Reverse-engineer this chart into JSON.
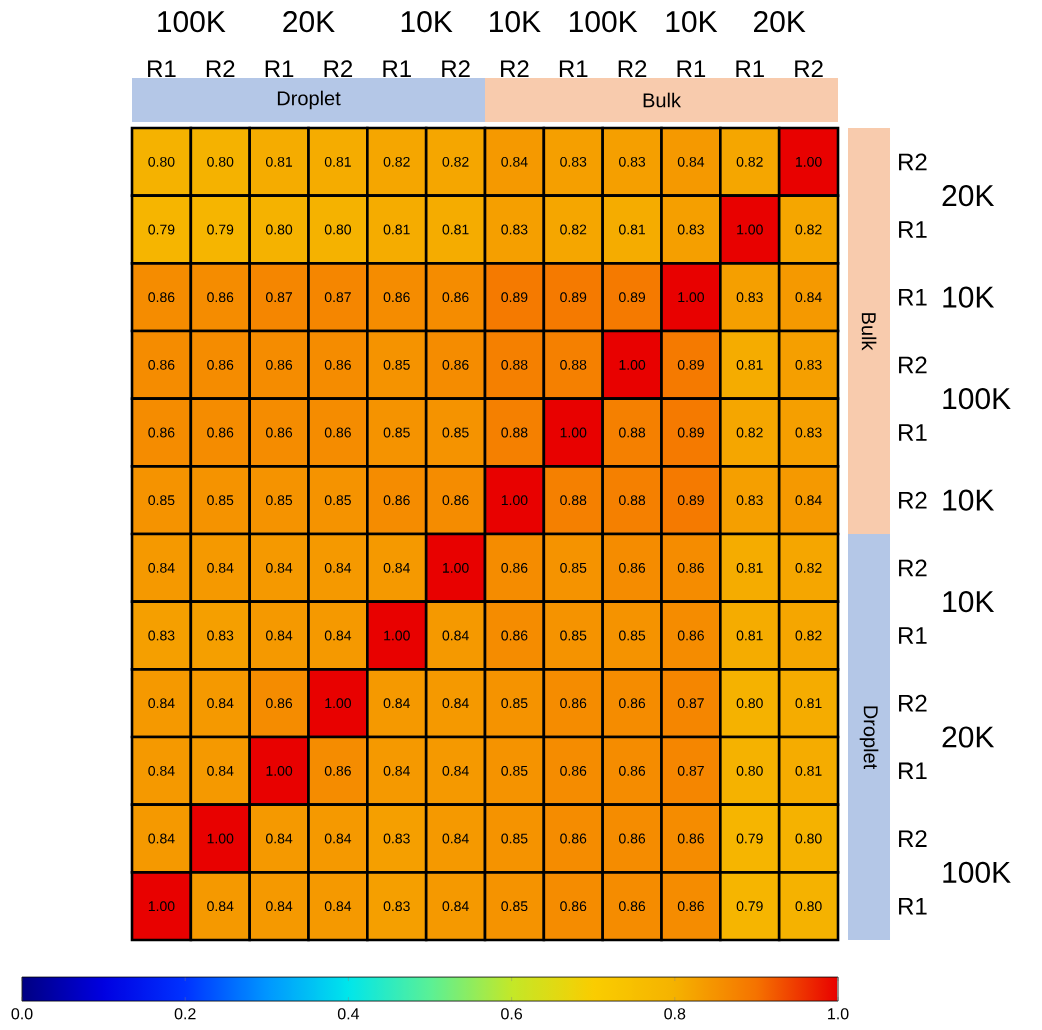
{
  "chart_data": {
    "type": "heatmap",
    "categories": [
      "R1",
      "R2",
      "R1",
      "R2",
      "R1",
      "R2",
      "R2",
      "R1",
      "R2",
      "R1",
      "R1",
      "R2"
    ],
    "y_categories": [
      "R2",
      "R1",
      "R1",
      "R2",
      "R1",
      "R2",
      "R2",
      "R1",
      "R2",
      "R1",
      "R2",
      "R1"
    ],
    "cells": [
      [
        0.8,
        0.8,
        0.81,
        0.81,
        0.82,
        0.82,
        0.84,
        0.83,
        0.83,
        0.84,
        0.82,
        1.0
      ],
      [
        0.79,
        0.79,
        0.8,
        0.8,
        0.81,
        0.81,
        0.83,
        0.82,
        0.81,
        0.83,
        1.0,
        0.82
      ],
      [
        0.86,
        0.86,
        0.87,
        0.87,
        0.86,
        0.86,
        0.89,
        0.89,
        0.89,
        1.0,
        0.83,
        0.84
      ],
      [
        0.86,
        0.86,
        0.86,
        0.86,
        0.85,
        0.86,
        0.88,
        0.88,
        1.0,
        0.89,
        0.81,
        0.83
      ],
      [
        0.86,
        0.86,
        0.86,
        0.86,
        0.85,
        0.85,
        0.88,
        1.0,
        0.88,
        0.89,
        0.82,
        0.83
      ],
      [
        0.85,
        0.85,
        0.85,
        0.85,
        0.86,
        0.86,
        1.0,
        0.88,
        0.88,
        0.89,
        0.83,
        0.84
      ],
      [
        0.84,
        0.84,
        0.84,
        0.84,
        0.84,
        1.0,
        0.86,
        0.85,
        0.86,
        0.86,
        0.81,
        0.82
      ],
      [
        0.83,
        0.83,
        0.84,
        0.84,
        1.0,
        0.84,
        0.86,
        0.85,
        0.85,
        0.86,
        0.81,
        0.82
      ],
      [
        0.84,
        0.84,
        0.86,
        1.0,
        0.84,
        0.84,
        0.85,
        0.86,
        0.86,
        0.87,
        0.8,
        0.81
      ],
      [
        0.84,
        0.84,
        1.0,
        0.86,
        0.84,
        0.84,
        0.85,
        0.86,
        0.86,
        0.87,
        0.8,
        0.81
      ],
      [
        0.84,
        1.0,
        0.84,
        0.84,
        0.83,
        0.84,
        0.85,
        0.86,
        0.86,
        0.86,
        0.79,
        0.8
      ],
      [
        1.0,
        0.84,
        0.84,
        0.84,
        0.83,
        0.84,
        0.85,
        0.86,
        0.86,
        0.86,
        0.79,
        0.8
      ]
    ],
    "cell_labels": [
      [
        "0.80",
        "0.80",
        "0.81",
        "0.81",
        "0.82",
        "0.82",
        "0.84",
        "0.83",
        "0.83",
        "0.84",
        "0.82",
        "1.00"
      ],
      [
        "0.79",
        "0.79",
        "0.80",
        "0.80",
        "0.81",
        "0.81",
        "0.83",
        "0.82",
        "0.81",
        "0.83",
        "1.00",
        "0.82"
      ],
      [
        "0.86",
        "0.86",
        "0.87",
        "0.87",
        "0.86",
        "0.86",
        "0.89",
        "0.89",
        "0.89",
        "1.00",
        "0.83",
        "0.84"
      ],
      [
        "0.86",
        "0.86",
        "0.86",
        "0.86",
        "0.85",
        "0.86",
        "0.88",
        "0.88",
        "1.00",
        "0.89",
        "0.81",
        "0.83"
      ],
      [
        "0.86",
        "0.86",
        "0.86",
        "0.86",
        "0.85",
        "0.85",
        "0.88",
        "1.00",
        "0.88",
        "0.89",
        "0.82",
        "0.83"
      ],
      [
        "0.85",
        "0.85",
        "0.85",
        "0.85",
        "0.86",
        "0.86",
        "1.00",
        "0.88",
        "0.88",
        "0.89",
        "0.83",
        "0.84"
      ],
      [
        "0.84",
        "0.84",
        "0.84",
        "0.84",
        "0.84",
        "1.00",
        "0.86",
        "0.85",
        "0.86",
        "0.86",
        "0.81",
        "0.82"
      ],
      [
        "0.83",
        "0.83",
        "0.84",
        "0.84",
        "1.00",
        "0.84",
        "0.86",
        "0.85",
        "0.85",
        "0.86",
        "0.81",
        "0.82"
      ],
      [
        "0.84",
        "0.84",
        "0.86",
        "1.00",
        "0.84",
        "0.84",
        "0.85",
        "0.86",
        "0.86",
        "0.87",
        "0.80",
        "0.81"
      ],
      [
        "0.84",
        "0.84",
        "1.00",
        "0.86",
        "0.84",
        "0.84",
        "0.85",
        "0.86",
        "0.86",
        "0.87",
        "0.80",
        "0.81"
      ],
      [
        "0.84",
        "1.00",
        "0.84",
        "0.84",
        "0.83",
        "0.84",
        "0.85",
        "0.86",
        "0.86",
        "0.86",
        "0.79",
        "0.80"
      ],
      [
        "1.00",
        "0.84",
        "0.84",
        "0.84",
        "0.83",
        "0.84",
        "0.85",
        "0.86",
        "0.86",
        "0.86",
        "0.79",
        "0.80"
      ]
    ],
    "clim": [
      0,
      1
    ],
    "cticks": [
      {
        "value": 0,
        "label": "0.0"
      },
      0.2,
      0.4,
      0.6,
      0.8,
      {
        "value": 1,
        "label": "1.0"
      }
    ],
    "annotations": [
      "100K",
      "20K",
      "10K",
      "10K",
      "100K",
      "10K",
      "20K",
      "Droplet",
      "Bulk",
      "20K",
      "10K",
      "100K",
      "10K",
      "10K",
      "20K",
      "100K",
      "Bulk",
      "Droplet"
    ]
  }
}
